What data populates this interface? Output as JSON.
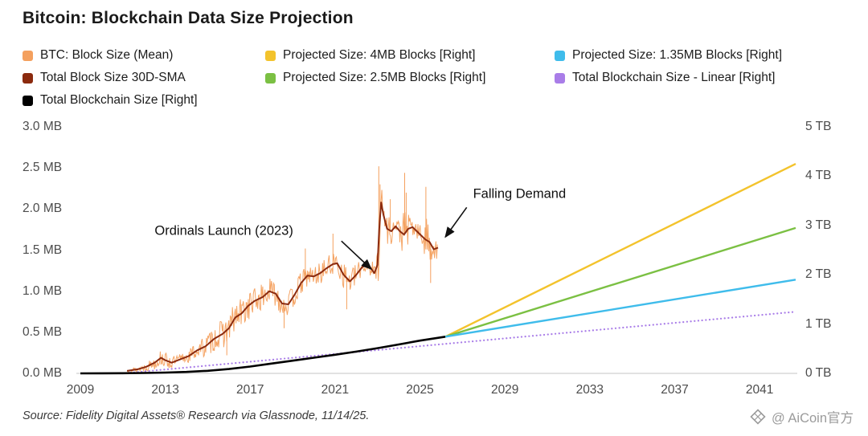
{
  "title": "Bitcoin: Blockchain Data Size Projection",
  "legend": {
    "items": [
      {
        "label": "BTC: Block Size (Mean)",
        "color": "#F4A05E"
      },
      {
        "label": "Projected Size: 4MB Blocks [Right]",
        "color": "#F3C32C"
      },
      {
        "label": "Projected Size: 1.35MB Blocks [Right]",
        "color": "#3FBCEB"
      },
      {
        "label": "Total Block Size 30D-SMA",
        "color": "#8B2A0E"
      },
      {
        "label": "Projected Size: 2.5MB Blocks [Right]",
        "color": "#7BC043"
      },
      {
        "label": "Total Blockchain Size - Linear [Right]",
        "color": "#A97DE8"
      },
      {
        "label": "Total Blockchain Size [Right]",
        "color": "#000000"
      }
    ]
  },
  "annotations": [
    {
      "text": "Ordinals Launch (2023)",
      "text_at": [
        2012.5,
        1.73
      ],
      "arrow": [
        [
          2021.3,
          1.61
        ],
        [
          2022.7,
          1.27
        ]
      ]
    },
    {
      "text": "Falling Demand",
      "text_at": [
        2027.5,
        2.18
      ],
      "arrow": [
        [
          2027.2,
          2.02
        ],
        [
          2026.2,
          1.66
        ]
      ]
    }
  ],
  "source": {
    "text": "Source: Fidelity Digital Assets® Research via Glassnode, 11/14/25."
  },
  "watermark": {
    "text": "@ AiCoin官方"
  },
  "chart_data": {
    "type": "line",
    "title": "Bitcoin: Blockchain Data Size Projection",
    "grid": false,
    "legend_position": "top",
    "x_domain": [
      2009,
      2042.7
    ],
    "x_ticks": [
      {
        "v": 2009,
        "label": "2009"
      },
      {
        "v": 2013,
        "label": "2013"
      },
      {
        "v": 2017,
        "label": "2017"
      },
      {
        "v": 2021,
        "label": "2021"
      },
      {
        "v": 2025,
        "label": "2025"
      },
      {
        "v": 2029,
        "label": "2029"
      },
      {
        "v": 2033,
        "label": "2033"
      },
      {
        "v": 2037,
        "label": "2037"
      },
      {
        "v": 2041,
        "label": "2041"
      }
    ],
    "left_axis": {
      "unit": "MB",
      "max": 3.0,
      "ticks": [
        {
          "v": 0.0,
          "label": "0.0 MB"
        },
        {
          "v": 0.5,
          "label": "0.5 MB"
        },
        {
          "v": 1.0,
          "label": "1.0 MB"
        },
        {
          "v": 1.5,
          "label": "1.5 MB"
        },
        {
          "v": 2.0,
          "label": "2.0 MB"
        },
        {
          "v": 2.5,
          "label": "2.5 MB"
        },
        {
          "v": 3.0,
          "label": "3.0 MB"
        }
      ]
    },
    "right_axis": {
      "unit": "TB",
      "max": 5,
      "ticks": [
        {
          "v": 0,
          "label": "0 TB"
        },
        {
          "v": 1,
          "label": "1 TB"
        },
        {
          "v": 2,
          "label": "2 TB"
        },
        {
          "v": 3,
          "label": "3 TB"
        },
        {
          "v": 4,
          "label": "4 TB"
        },
        {
          "v": 5,
          "label": "5 TB"
        }
      ]
    },
    "series": [
      {
        "name": "BTC: Block Size (Mean)",
        "axis": "left",
        "color": "#F4A05E",
        "style": "noisy",
        "width": 1,
        "points": [
          [
            2011.2,
            0.03
          ],
          [
            2011.7,
            0.05
          ],
          [
            2012.1,
            0.08
          ],
          [
            2012.5,
            0.13
          ],
          [
            2012.8,
            0.19
          ],
          [
            2013.0,
            0.16
          ],
          [
            2013.3,
            0.13
          ],
          [
            2013.7,
            0.17
          ],
          [
            2014.1,
            0.21
          ],
          [
            2014.5,
            0.28
          ],
          [
            2014.9,
            0.33
          ],
          [
            2015.3,
            0.42
          ],
          [
            2015.7,
            0.48
          ],
          [
            2016.0,
            0.55
          ],
          [
            2016.3,
            0.68
          ],
          [
            2016.6,
            0.73
          ],
          [
            2016.9,
            0.82
          ],
          [
            2017.2,
            0.88
          ],
          [
            2017.6,
            0.93
          ],
          [
            2017.9,
            1.0
          ],
          [
            2018.2,
            0.97
          ],
          [
            2018.5,
            0.85
          ],
          [
            2018.8,
            0.84
          ],
          [
            2019.1,
            0.96
          ],
          [
            2019.4,
            1.1
          ],
          [
            2019.7,
            1.19
          ],
          [
            2020.0,
            1.18
          ],
          [
            2020.3,
            1.22
          ],
          [
            2020.6,
            1.28
          ],
          [
            2020.9,
            1.33
          ],
          [
            2021.1,
            1.34
          ],
          [
            2021.4,
            1.2
          ],
          [
            2021.7,
            1.12
          ],
          [
            2022.0,
            1.2
          ],
          [
            2022.3,
            1.3
          ],
          [
            2022.6,
            1.31
          ],
          [
            2022.85,
            1.22
          ],
          [
            2023.0,
            1.32
          ],
          [
            2023.08,
            1.75
          ],
          [
            2023.17,
            2.08
          ],
          [
            2023.28,
            1.93
          ],
          [
            2023.45,
            1.76
          ],
          [
            2023.65,
            1.73
          ],
          [
            2023.85,
            1.79
          ],
          [
            2024.05,
            1.73
          ],
          [
            2024.25,
            1.69
          ],
          [
            2024.45,
            1.76
          ],
          [
            2024.65,
            1.78
          ],
          [
            2024.85,
            1.73
          ],
          [
            2025.05,
            1.68
          ],
          [
            2025.25,
            1.63
          ],
          [
            2025.45,
            1.6
          ],
          [
            2025.65,
            1.51
          ],
          [
            2025.85,
            1.53
          ]
        ],
        "noise_amp": [
          [
            2011.2,
            0.02
          ],
          [
            2012.0,
            0.05
          ],
          [
            2012.8,
            0.1
          ],
          [
            2013.5,
            0.07
          ],
          [
            2014.5,
            0.1
          ],
          [
            2015.0,
            0.14
          ],
          [
            2015.8,
            0.18
          ],
          [
            2016.5,
            0.2
          ],
          [
            2017.2,
            0.17
          ],
          [
            2018.0,
            0.16
          ],
          [
            2019.0,
            0.15
          ],
          [
            2020.0,
            0.13
          ],
          [
            2021.0,
            0.14
          ],
          [
            2021.6,
            0.17
          ],
          [
            2022.3,
            0.1
          ],
          [
            2022.9,
            0.12
          ],
          [
            2023.05,
            0.42
          ],
          [
            2023.2,
            0.28
          ],
          [
            2023.5,
            0.17
          ],
          [
            2024.0,
            0.14
          ],
          [
            2024.3,
            0.33
          ],
          [
            2024.5,
            0.15
          ],
          [
            2025.0,
            0.12
          ],
          [
            2025.3,
            0.28
          ],
          [
            2025.55,
            0.2
          ],
          [
            2025.85,
            0.14
          ]
        ],
        "spikes": [
          [
            2023.06,
            2.52
          ],
          [
            2023.12,
            2.3
          ],
          [
            2023.6,
            2.12
          ],
          [
            2024.28,
            2.44
          ],
          [
            2024.35,
            2.2
          ],
          [
            2025.28,
            2.27
          ],
          [
            2020.9,
            1.7
          ],
          [
            2019.6,
            1.52
          ],
          [
            2021.55,
            0.78
          ],
          [
            2015.9,
            0.22
          ],
          [
            2025.5,
            1.1
          ],
          [
            2018.6,
            0.55
          ]
        ]
      },
      {
        "name": "Total Blockchain Size - Linear [Right]",
        "axis": "right",
        "color": "#A97DE8",
        "style": "dotted",
        "width": 2.2,
        "points": [
          [
            2011,
            0.0
          ],
          [
            2042.7,
            1.25
          ]
        ]
      },
      {
        "name": "Total Blockchain Size [Right]",
        "axis": "right",
        "color": "#000000",
        "style": "solid",
        "width": 2.6,
        "points": [
          [
            2009,
            0
          ],
          [
            2010,
            0.002
          ],
          [
            2011,
            0.004
          ],
          [
            2012,
            0.008
          ],
          [
            2013,
            0.016
          ],
          [
            2014,
            0.03
          ],
          [
            2015,
            0.052
          ],
          [
            2016,
            0.088
          ],
          [
            2017,
            0.138
          ],
          [
            2018,
            0.198
          ],
          [
            2019,
            0.258
          ],
          [
            2020,
            0.318
          ],
          [
            2021,
            0.378
          ],
          [
            2022,
            0.442
          ],
          [
            2023,
            0.512
          ],
          [
            2024,
            0.586
          ],
          [
            2025,
            0.664
          ],
          [
            2026.2,
            0.745
          ]
        ]
      },
      {
        "name": "Projected Size: 4MB Blocks [Right]",
        "axis": "right",
        "color": "#F3C32C",
        "style": "solid",
        "width": 2.4,
        "points": [
          [
            2026.2,
            0.745
          ],
          [
            2042.7,
            4.25
          ]
        ]
      },
      {
        "name": "Projected Size: 2.5MB Blocks [Right]",
        "axis": "right",
        "color": "#7BC043",
        "style": "solid",
        "width": 2.4,
        "points": [
          [
            2026.2,
            0.745
          ],
          [
            2042.7,
            2.95
          ]
        ]
      },
      {
        "name": "Projected Size: 1.35MB Blocks [Right]",
        "axis": "right",
        "color": "#3FBCEB",
        "style": "solid",
        "width": 2.4,
        "points": [
          [
            2026.2,
            0.745
          ],
          [
            2042.7,
            1.9
          ]
        ]
      },
      {
        "name": "Total Block Size 30D-SMA",
        "axis": "left",
        "color": "#8B2A0E",
        "style": "solid",
        "width": 2,
        "points": [
          [
            2011.2,
            0.03
          ],
          [
            2011.7,
            0.05
          ],
          [
            2012.1,
            0.08
          ],
          [
            2012.5,
            0.13
          ],
          [
            2012.8,
            0.19
          ],
          [
            2013.0,
            0.16
          ],
          [
            2013.3,
            0.13
          ],
          [
            2013.7,
            0.17
          ],
          [
            2014.1,
            0.21
          ],
          [
            2014.5,
            0.28
          ],
          [
            2014.9,
            0.33
          ],
          [
            2015.3,
            0.42
          ],
          [
            2015.7,
            0.48
          ],
          [
            2016.0,
            0.55
          ],
          [
            2016.3,
            0.68
          ],
          [
            2016.6,
            0.73
          ],
          [
            2016.9,
            0.82
          ],
          [
            2017.2,
            0.88
          ],
          [
            2017.6,
            0.93
          ],
          [
            2017.9,
            1.0
          ],
          [
            2018.2,
            0.97
          ],
          [
            2018.5,
            0.85
          ],
          [
            2018.8,
            0.84
          ],
          [
            2019.1,
            0.96
          ],
          [
            2019.4,
            1.1
          ],
          [
            2019.7,
            1.19
          ],
          [
            2020.0,
            1.18
          ],
          [
            2020.3,
            1.22
          ],
          [
            2020.6,
            1.28
          ],
          [
            2020.9,
            1.33
          ],
          [
            2021.1,
            1.34
          ],
          [
            2021.4,
            1.2
          ],
          [
            2021.7,
            1.12
          ],
          [
            2022.0,
            1.2
          ],
          [
            2022.3,
            1.3
          ],
          [
            2022.6,
            1.31
          ],
          [
            2022.85,
            1.22
          ],
          [
            2023.0,
            1.32
          ],
          [
            2023.08,
            1.75
          ],
          [
            2023.17,
            2.08
          ],
          [
            2023.28,
            1.93
          ],
          [
            2023.45,
            1.76
          ],
          [
            2023.65,
            1.73
          ],
          [
            2023.85,
            1.79
          ],
          [
            2024.05,
            1.73
          ],
          [
            2024.25,
            1.69
          ],
          [
            2024.45,
            1.76
          ],
          [
            2024.65,
            1.78
          ],
          [
            2024.85,
            1.73
          ],
          [
            2025.05,
            1.68
          ],
          [
            2025.25,
            1.63
          ],
          [
            2025.45,
            1.6
          ],
          [
            2025.65,
            1.51
          ],
          [
            2025.85,
            1.53
          ]
        ]
      }
    ]
  }
}
